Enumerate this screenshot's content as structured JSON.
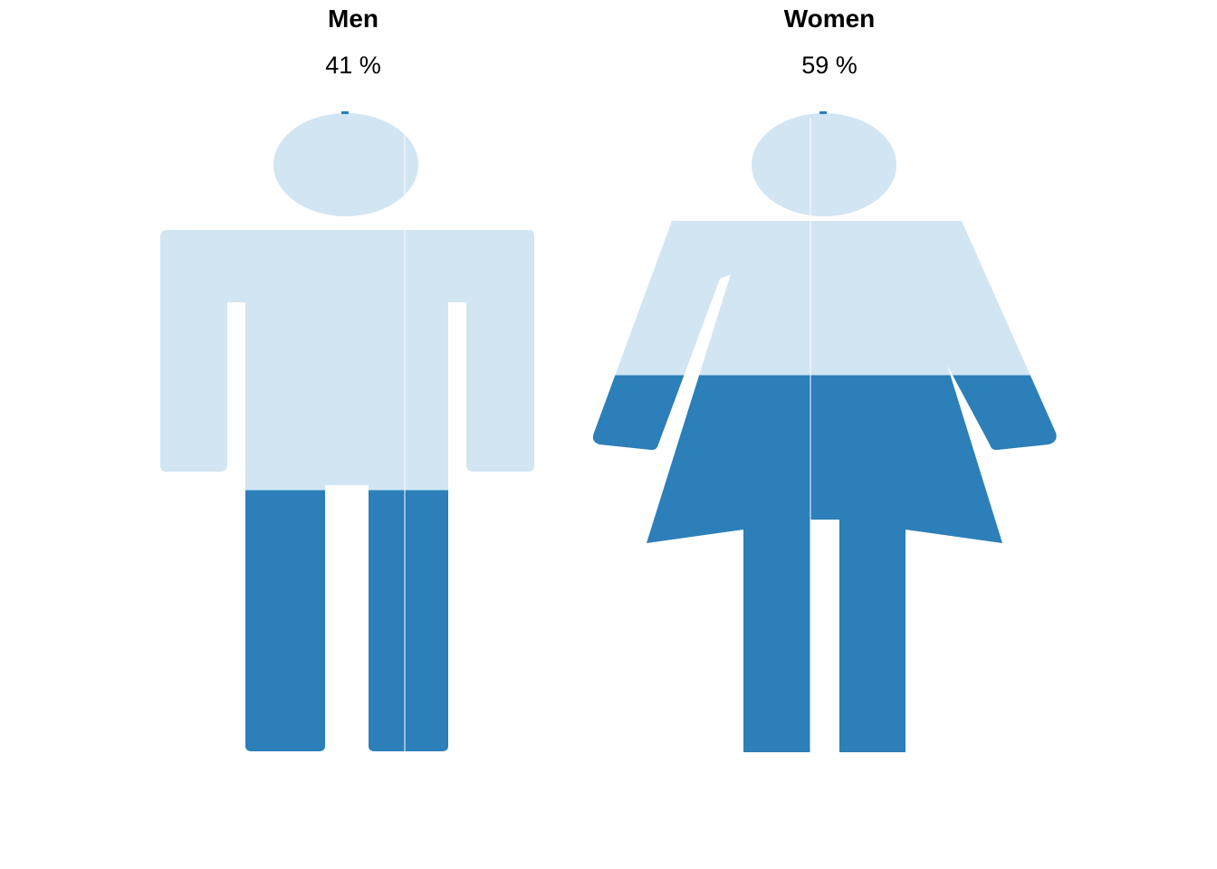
{
  "chart_data": {
    "type": "pictograph",
    "title": "",
    "unit": "%",
    "series": [
      {
        "name": "Men",
        "value": 41,
        "label": "41 %"
      },
      {
        "name": "Women",
        "value": 59,
        "label": "59 %"
      }
    ],
    "colors": {
      "filled": "#2c7fb8",
      "unfilled": "#d1e5f3",
      "background": "#ffffff"
    },
    "fill_direction": "bottom-up"
  }
}
